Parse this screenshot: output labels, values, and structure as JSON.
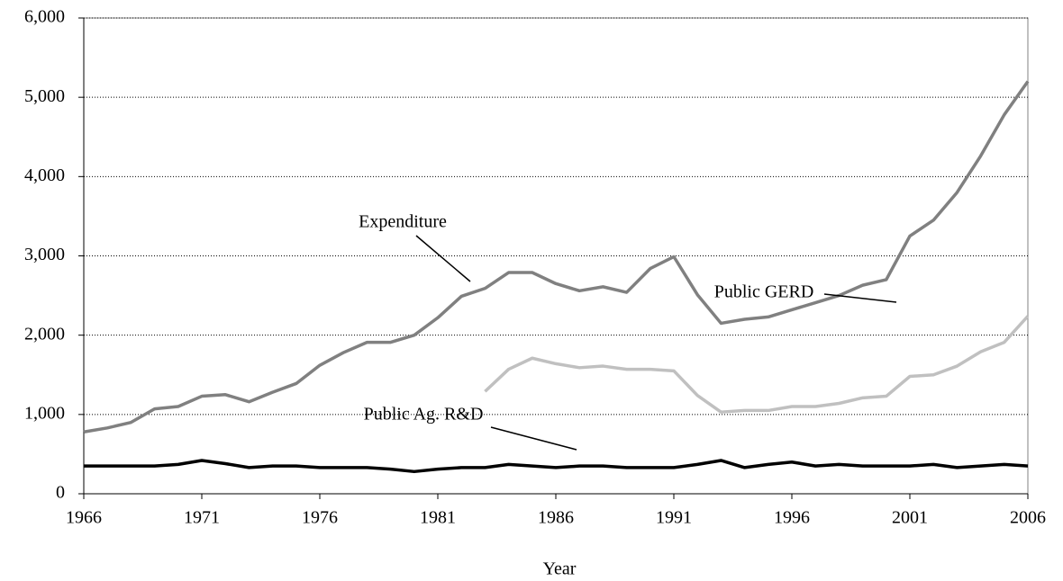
{
  "chart_data": {
    "type": "line",
    "x": [
      1966,
      1967,
      1968,
      1969,
      1970,
      1971,
      1972,
      1973,
      1974,
      1975,
      1976,
      1977,
      1978,
      1979,
      1980,
      1981,
      1982,
      1983,
      1984,
      1985,
      1986,
      1987,
      1988,
      1989,
      1990,
      1991,
      1992,
      1993,
      1994,
      1995,
      1996,
      1997,
      1998,
      1999,
      2000,
      2001,
      2002,
      2003,
      2004,
      2005,
      2006
    ],
    "series": [
      {
        "name": "Expenditure",
        "color": "#808080",
        "values": [
          780,
          830,
          900,
          1070,
          1100,
          1230,
          1250,
          1160,
          1280,
          1390,
          1620,
          1780,
          1910,
          1910,
          2000,
          2220,
          2490,
          2590,
          2790,
          2790,
          2650,
          2560,
          2610,
          2540,
          2840,
          2990,
          2510,
          2150,
          2200,
          2230,
          2320,
          2410,
          2500,
          2630,
          2700,
          3250,
          3450,
          3800,
          4260,
          4780,
          5200
        ]
      },
      {
        "name": "Public GERD",
        "color": "#c0c0c0",
        "values": [
          null,
          null,
          null,
          null,
          null,
          null,
          null,
          null,
          null,
          null,
          null,
          null,
          null,
          null,
          null,
          null,
          null,
          1290,
          1570,
          1710,
          1640,
          1590,
          1610,
          1570,
          1570,
          1550,
          1240,
          1030,
          1050,
          1050,
          1100,
          1100,
          1140,
          1210,
          1230,
          1480,
          1500,
          1610,
          1790,
          1910,
          2240
        ]
      },
      {
        "name": "Public Ag. R&D",
        "color": "#000000",
        "values": [
          350,
          350,
          350,
          350,
          370,
          420,
          380,
          330,
          350,
          350,
          330,
          330,
          330,
          310,
          280,
          310,
          330,
          330,
          370,
          350,
          330,
          350,
          350,
          330,
          330,
          330,
          370,
          420,
          330,
          370,
          400,
          350,
          370,
          350,
          350,
          350,
          370,
          330,
          350,
          370,
          350
        ]
      }
    ],
    "x_label": "Year",
    "xlim": [
      1966,
      2006
    ],
    "xticks": [
      1966,
      1971,
      1976,
      1981,
      1986,
      1991,
      1996,
      2001,
      2006
    ],
    "ylim": [
      0,
      6000
    ],
    "yticks": [
      0,
      {
        "value": 1000,
        "label": "1,000"
      },
      {
        "value": 2000,
        "label": "2,000"
      },
      {
        "value": 3000,
        "label": "3,000"
      },
      {
        "value": 4000,
        "label": "4,000"
      },
      {
        "value": 5000,
        "label": "5,000"
      },
      {
        "value": 6000,
        "label": "6,000"
      }
    ],
    "grid": true
  }
}
